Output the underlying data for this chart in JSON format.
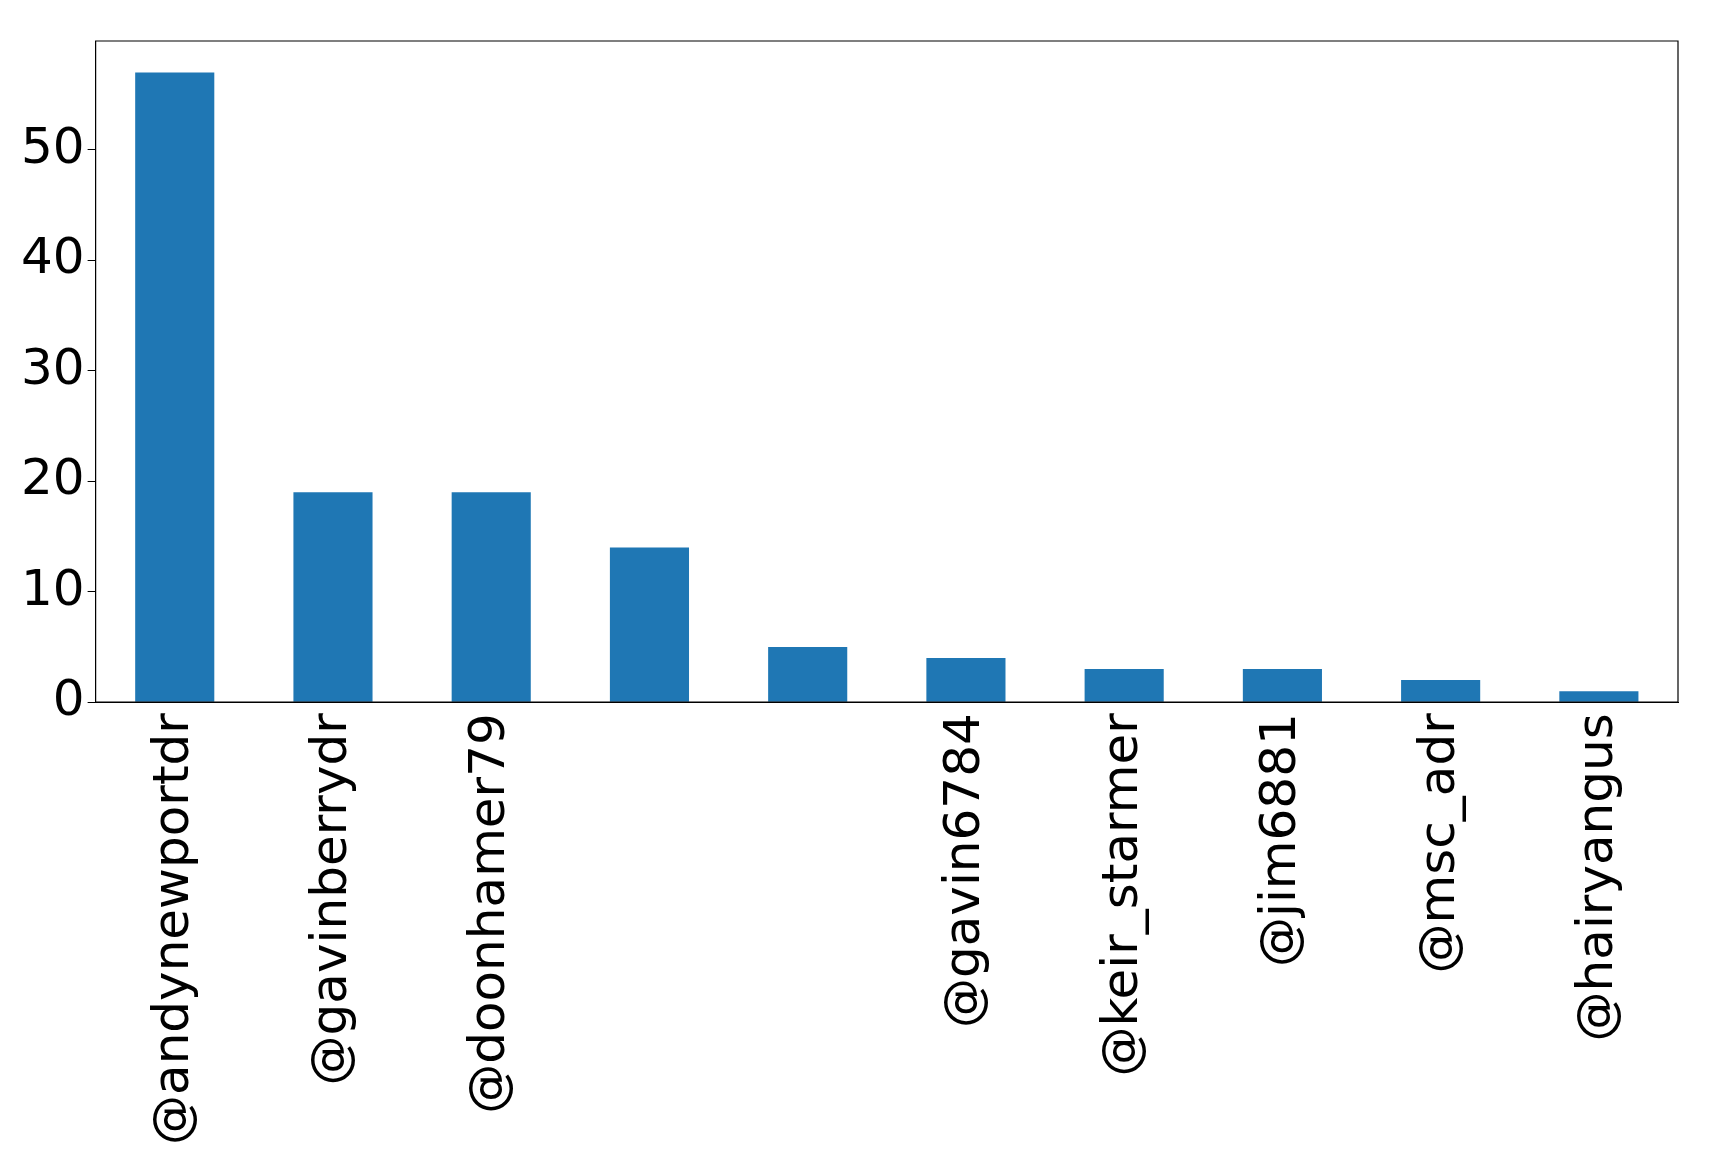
{
  "chart_data": {
    "type": "bar",
    "categories": [
      "@andynewportdr",
      "@gavinberrydr",
      "@doonhamer79",
      null,
      null,
      "@gavin6784",
      "@keir_starmer",
      "@jim6881",
      "@msc_adr",
      "@hairyangus"
    ],
    "values": [
      57,
      19,
      19,
      14,
      5,
      4,
      3,
      3,
      2,
      1
    ],
    "color": "#1f77b4",
    "ylim": [
      0,
      59.85
    ],
    "yticks": [
      0,
      10,
      20,
      30,
      40,
      50
    ],
    "grid": false,
    "legend": false
  }
}
